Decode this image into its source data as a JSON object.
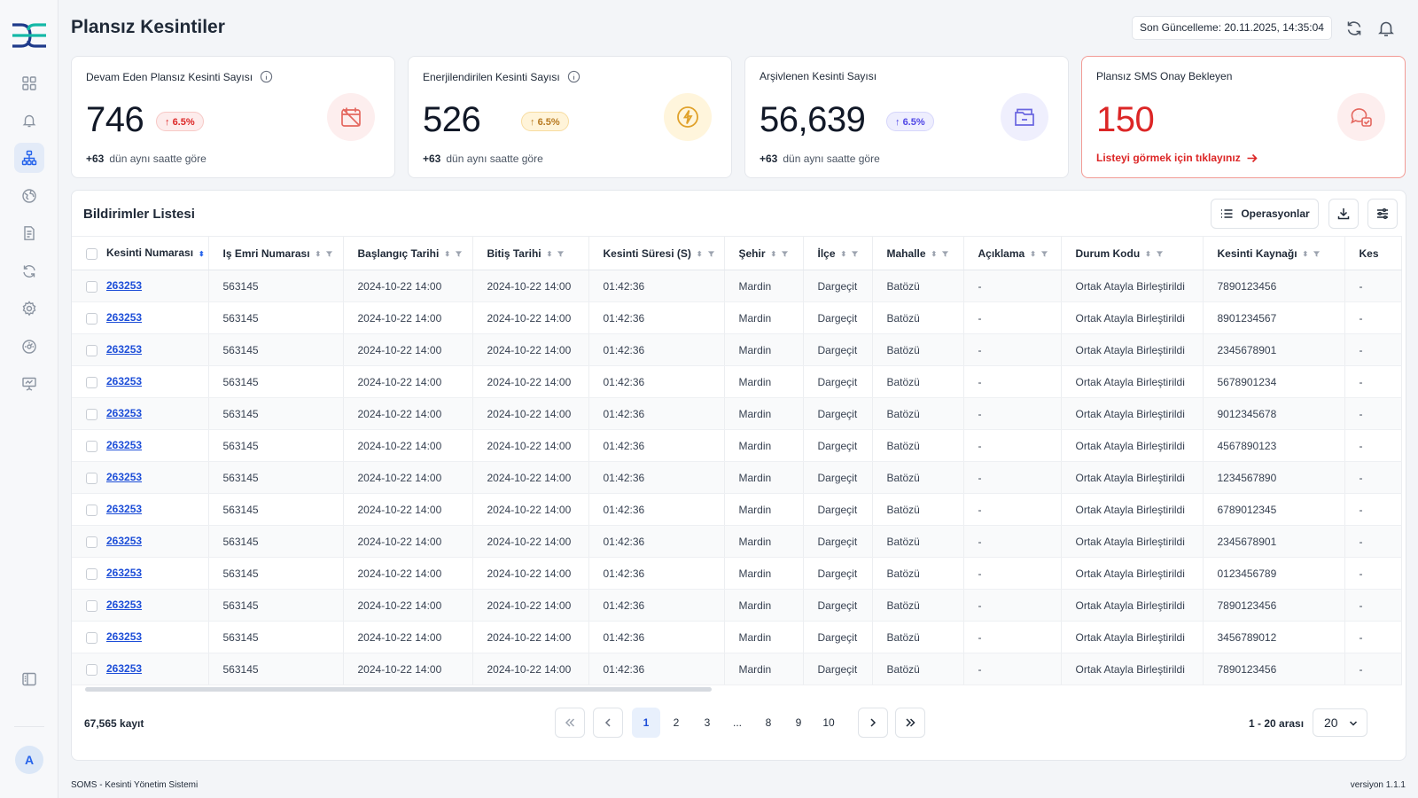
{
  "header": {
    "title": "Plansız Kesintiler",
    "last_update": "Son Güncelleme: 20.11.2025, 14:35:04"
  },
  "cards": [
    {
      "title": "Devam Eden Plansız Kesinti Sayısı",
      "value": "746",
      "badge": "6.5%",
      "foot_delta": "+63",
      "foot_text": "dün aynı saatte göre",
      "icon": "calendar-off-icon",
      "accent": "#dc2626"
    },
    {
      "title": "Enerjilendirilen Kesinti Sayısı",
      "value": "526",
      "badge": "6.5%",
      "foot_delta": "+63",
      "foot_text": "dün aynı saatte göre",
      "icon": "bolt-icon",
      "accent": "#d97706"
    },
    {
      "title": "Arşivlenen Kesinti Sayısı",
      "value": "56,639",
      "badge": "6.5%",
      "foot_delta": "+63",
      "foot_text": "dün aynı saatte göre",
      "icon": "archive-icon",
      "accent": "#4f46e5"
    },
    {
      "title": "Plansız SMS Onay Bekleyen",
      "value": "150",
      "link": "Listeyi görmek için tıklayınız",
      "icon": "chat-check-icon",
      "accent": "#dc2626"
    }
  ],
  "list": {
    "title": "Bildirimler Listesi",
    "operations_label": "Operasyonlar",
    "columns": [
      "Kesinti Numarası",
      "Iş Emri Numarası",
      "Başlangıç Tarihi",
      "Bitiş Tarihi",
      "Kesinti Süresi (S)",
      "Şehir",
      "İlçe",
      "Mahalle",
      "Açıklama",
      "Durum Kodu",
      "Kesinti Kaynağı",
      "Kes"
    ],
    "rows": [
      [
        "263253",
        "563145",
        "2024-10-22 14:00",
        "2024-10-22 14:00",
        "01:42:36",
        "Mardin",
        "Dargeçit",
        "Batözü",
        "-",
        "Ortak Atayla Birleştirildi",
        "7890123456",
        "-"
      ],
      [
        "263253",
        "563145",
        "2024-10-22 14:00",
        "2024-10-22 14:00",
        "01:42:36",
        "Mardin",
        "Dargeçit",
        "Batözü",
        "-",
        "Ortak Atayla Birleştirildi",
        "8901234567",
        "-"
      ],
      [
        "263253",
        "563145",
        "2024-10-22 14:00",
        "2024-10-22 14:00",
        "01:42:36",
        "Mardin",
        "Dargeçit",
        "Batözü",
        "-",
        "Ortak Atayla Birleştirildi",
        "2345678901",
        "-"
      ],
      [
        "263253",
        "563145",
        "2024-10-22 14:00",
        "2024-10-22 14:00",
        "01:42:36",
        "Mardin",
        "Dargeçit",
        "Batözü",
        "-",
        "Ortak Atayla Birleştirildi",
        "5678901234",
        "-"
      ],
      [
        "263253",
        "563145",
        "2024-10-22 14:00",
        "2024-10-22 14:00",
        "01:42:36",
        "Mardin",
        "Dargeçit",
        "Batözü",
        "-",
        "Ortak Atayla Birleştirildi",
        "9012345678",
        "-"
      ],
      [
        "263253",
        "563145",
        "2024-10-22 14:00",
        "2024-10-22 14:00",
        "01:42:36",
        "Mardin",
        "Dargeçit",
        "Batözü",
        "-",
        "Ortak Atayla Birleştirildi",
        "4567890123",
        "-"
      ],
      [
        "263253",
        "563145",
        "2024-10-22 14:00",
        "2024-10-22 14:00",
        "01:42:36",
        "Mardin",
        "Dargeçit",
        "Batözü",
        "-",
        "Ortak Atayla Birleştirildi",
        "1234567890",
        "-"
      ],
      [
        "263253",
        "563145",
        "2024-10-22 14:00",
        "2024-10-22 14:00",
        "01:42:36",
        "Mardin",
        "Dargeçit",
        "Batözü",
        "-",
        "Ortak Atayla Birleştirildi",
        "6789012345",
        "-"
      ],
      [
        "263253",
        "563145",
        "2024-10-22 14:00",
        "2024-10-22 14:00",
        "01:42:36",
        "Mardin",
        "Dargeçit",
        "Batözü",
        "-",
        "Ortak Atayla Birleştirildi",
        "2345678901",
        "-"
      ],
      [
        "263253",
        "563145",
        "2024-10-22 14:00",
        "2024-10-22 14:00",
        "01:42:36",
        "Mardin",
        "Dargeçit",
        "Batözü",
        "-",
        "Ortak Atayla Birleştirildi",
        "0123456789",
        "-"
      ],
      [
        "263253",
        "563145",
        "2024-10-22 14:00",
        "2024-10-22 14:00",
        "01:42:36",
        "Mardin",
        "Dargeçit",
        "Batözü",
        "-",
        "Ortak Atayla Birleştirildi",
        "7890123456",
        "-"
      ],
      [
        "263253",
        "563145",
        "2024-10-22 14:00",
        "2024-10-22 14:00",
        "01:42:36",
        "Mardin",
        "Dargeçit",
        "Batözü",
        "-",
        "Ortak Atayla Birleştirildi",
        "3456789012",
        "-"
      ],
      [
        "263253",
        "563145",
        "2024-10-22 14:00",
        "2024-10-22 14:00",
        "01:42:36",
        "Mardin",
        "Dargeçit",
        "Batözü",
        "-",
        "Ortak Atayla Birleştirildi",
        "7890123456",
        "-"
      ]
    ]
  },
  "pagination": {
    "total": "67,565 kayıt",
    "pages": [
      "1",
      "2",
      "3",
      "...",
      "8",
      "9",
      "10"
    ],
    "current": "1",
    "range": "1 - 20 arası",
    "page_size": "20"
  },
  "sidebar": {
    "items": [
      "dashboard-icon",
      "bell-icon",
      "hierarchy-icon",
      "globe-icon",
      "document-icon",
      "refresh-icon",
      "settings-icon",
      "gauge-icon",
      "presentation-icon"
    ],
    "collapse_icon": "sidebar-toggle-icon",
    "avatar": "A"
  },
  "footer": {
    "app": "SOMS - Kesinti Yönetim Sistemi",
    "version": "versiyon 1.1.1"
  },
  "colors": {
    "accent_blue": "#1d4ed8",
    "alert_red": "#dc2626",
    "logo_dark": "#1e3a8a",
    "logo_teal": "#14b8a6"
  }
}
